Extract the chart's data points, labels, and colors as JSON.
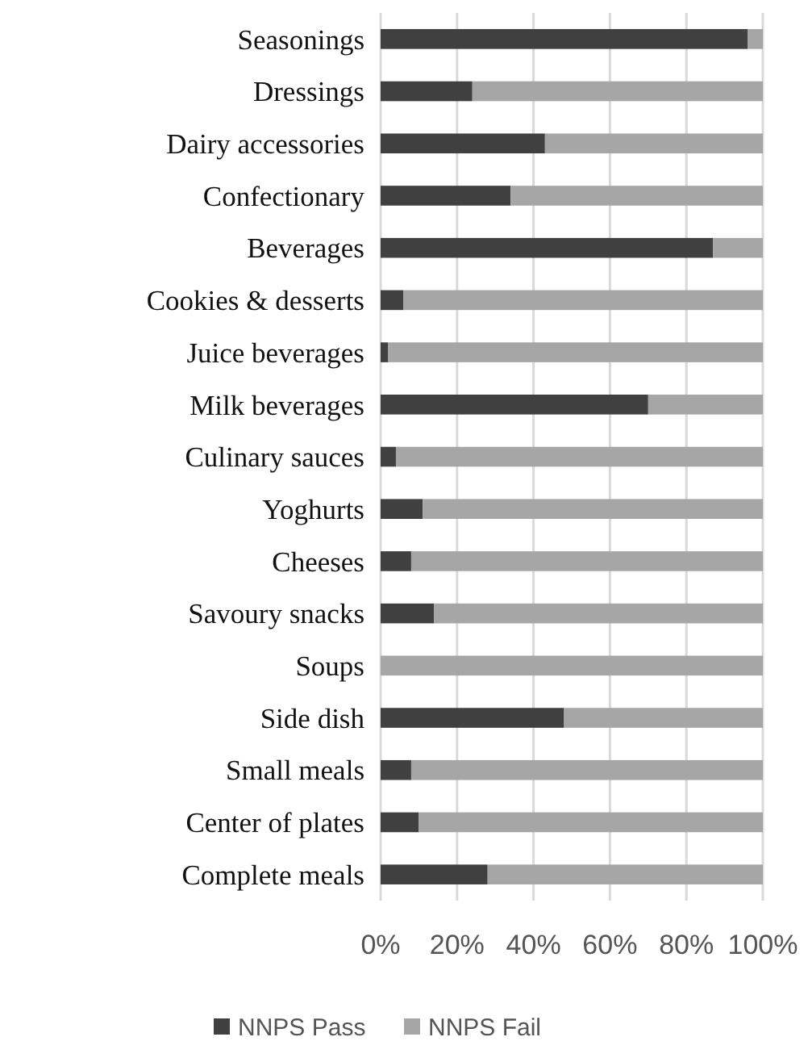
{
  "chart_data": {
    "type": "bar",
    "orientation": "horizontal",
    "stacked": true,
    "categories": [
      "Seasonings",
      "Dressings",
      "Dairy accessories",
      "Confectionary",
      "Beverages",
      "Cookies & desserts",
      "Juice beverages",
      "Milk beverages",
      "Culinary sauces",
      "Yoghurts",
      "Cheeses",
      "Savoury snacks",
      "Soups",
      "Side dish",
      "Small meals",
      "Center of plates",
      "Complete meals"
    ],
    "series": [
      {
        "name": "NNPS Pass",
        "color": "#404040",
        "values": [
          96,
          24,
          43,
          34,
          87,
          6,
          2,
          70,
          4,
          11,
          8,
          14,
          0,
          48,
          8,
          10,
          28
        ]
      },
      {
        "name": "NNPS Fail",
        "color": "#a6a6a6",
        "values": [
          4,
          76,
          57,
          66,
          13,
          94,
          98,
          30,
          96,
          89,
          92,
          86,
          100,
          52,
          92,
          90,
          72
        ]
      }
    ],
    "xlim": [
      0,
      100
    ],
    "xticks": [
      {
        "value": 0,
        "label": "0%"
      },
      {
        "value": 20,
        "label": "20%"
      },
      {
        "value": 40,
        "label": "40%"
      },
      {
        "value": 60,
        "label": "60%"
      },
      {
        "value": 80,
        "label": "80%"
      },
      {
        "value": 100,
        "label": "100%"
      }
    ],
    "grid": "x",
    "legend": "bottom"
  }
}
